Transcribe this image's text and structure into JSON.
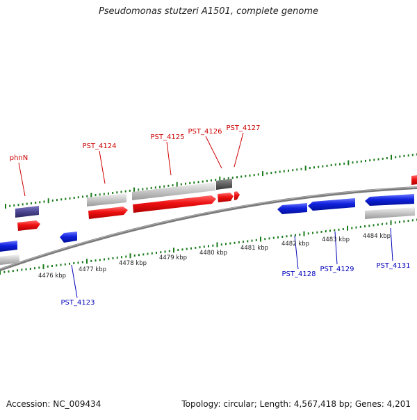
{
  "title": "Pseudomonas stutzeri A1501, complete genome",
  "footer": {
    "accession": "Accession: NC_009434",
    "summary": "Topology: circular; Length: 4,567,418 bp; Genes: 4,201"
  },
  "colors": {
    "forward_gene": "#ee1111",
    "reverse_gene": "#1122dd",
    "forward_label": "#cc0000",
    "reverse_label": "#0000bb",
    "cds_shadow": "#c0c0c0",
    "pseudo_purple": "#4b4690",
    "dark_gene": "#606060",
    "tick_green": "#1a7a1a",
    "backbone": "#7a7a7a"
  },
  "axis": {
    "ticks": [
      "4476 kbp",
      "4477 kbp",
      "4478 kbp",
      "4479 kbp",
      "4480 kbp",
      "4481 kbp",
      "4482 kbp",
      "4483 kbp",
      "4484 kbp"
    ]
  },
  "forward_labels": [
    "phnN",
    "PST_4124",
    "PST_4125",
    "PST_4126",
    "PST_4127"
  ],
  "reverse_labels": [
    "PST_4123",
    "PST_4128",
    "PST_4129",
    "PST_4131"
  ]
}
